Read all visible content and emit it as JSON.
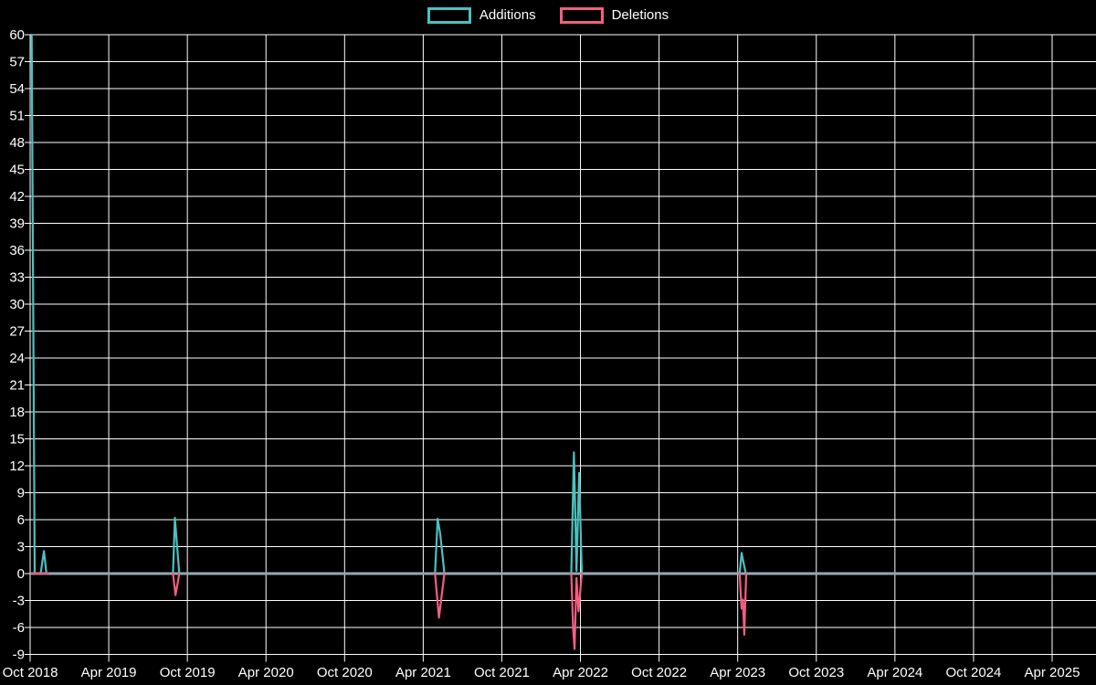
{
  "chart_data": {
    "type": "line",
    "title": "",
    "xlabel": "",
    "ylabel": "",
    "background_color": "#000000",
    "grid_color": "#ffffff",
    "zero_line_color": "#95a9b4",
    "text_color": "#ffffff",
    "grid": true,
    "legend_position": "top-center",
    "legend": [
      {
        "label": "Additions",
        "color": "#4cc0c0"
      },
      {
        "label": "Deletions",
        "color": "#f25f7f"
      }
    ],
    "ylim": [
      -9,
      60
    ],
    "y_ticks": [
      60,
      57,
      54,
      51,
      48,
      45,
      42,
      39,
      36,
      33,
      30,
      27,
      24,
      21,
      18,
      15,
      12,
      9,
      6,
      3,
      0,
      -3,
      -6,
      -9
    ],
    "x_ticks": [
      "Oct 2018",
      "Apr 2019",
      "Oct 2019",
      "Apr 2020",
      "Oct 2020",
      "Apr 2021",
      "Oct 2021",
      "Apr 2022",
      "Oct 2022",
      "Apr 2023",
      "Oct 2023",
      "Apr 2024",
      "Oct 2024",
      "Apr 2025"
    ],
    "x_unit": "months_since_oct_2018",
    "x_months_per_tick": 6,
    "x_domain_months": [
      0,
      81.3
    ],
    "series": [
      {
        "name": "Additions",
        "color": "#4cc0c0",
        "segments": [
          [
            [
              0.12,
              60
            ],
            [
              0.35,
              0
            ],
            [
              0.8,
              0
            ],
            [
              1.05,
              2.5
            ],
            [
              1.25,
              0
            ],
            [
              1.38,
              0
            ]
          ],
          [
            [
              10.9,
              0
            ],
            [
              11.05,
              6.2
            ],
            [
              11.2,
              3.3
            ],
            [
              11.38,
              0
            ]
          ],
          [
            [
              30.9,
              0
            ],
            [
              31.1,
              6.1
            ],
            [
              31.3,
              4.4
            ],
            [
              31.62,
              0
            ]
          ],
          [
            [
              41.3,
              0
            ],
            [
              41.5,
              13.5
            ],
            [
              41.7,
              0.3
            ],
            [
              41.9,
              11.2
            ],
            [
              42.1,
              0
            ]
          ],
          [
            [
              54.15,
              0
            ],
            [
              54.3,
              2.3
            ],
            [
              54.45,
              1.2
            ],
            [
              54.62,
              0
            ]
          ]
        ]
      },
      {
        "name": "Deletions",
        "color": "#f25f7f",
        "segments": [
          [
            [
              0.12,
              0
            ],
            [
              1.38,
              0
            ]
          ],
          [
            [
              10.9,
              0
            ],
            [
              11.1,
              -2.4
            ],
            [
              11.38,
              0
            ]
          ],
          [
            [
              30.9,
              0
            ],
            [
              31.2,
              -4.9
            ],
            [
              31.62,
              0
            ]
          ],
          [
            [
              41.3,
              0
            ],
            [
              41.45,
              -6.3
            ],
            [
              41.55,
              -8.4
            ],
            [
              41.7,
              -0.5
            ],
            [
              41.85,
              -4.2
            ],
            [
              42.1,
              0
            ]
          ],
          [
            [
              54.15,
              0
            ],
            [
              54.3,
              -3.9
            ],
            [
              54.4,
              -2.9
            ],
            [
              54.5,
              -6.8
            ],
            [
              54.65,
              0
            ]
          ]
        ]
      }
    ]
  }
}
